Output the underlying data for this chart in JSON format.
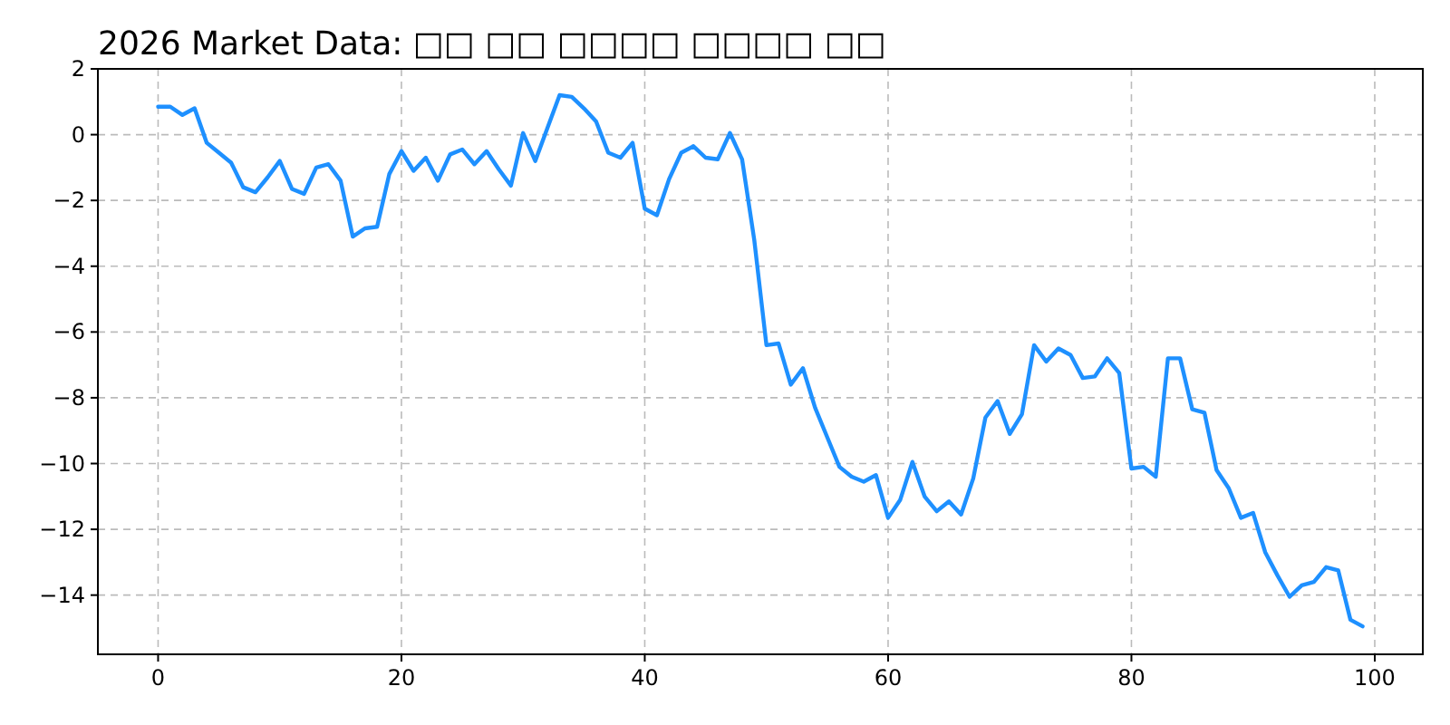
{
  "chart_data": {
    "type": "line",
    "title": "2026 Market Data: □□ □□ □□□□ □□□□ □□",
    "x": [
      0,
      1,
      2,
      3,
      4,
      5,
      6,
      7,
      8,
      9,
      10,
      11,
      12,
      13,
      14,
      15,
      16,
      17,
      18,
      19,
      20,
      21,
      22,
      23,
      24,
      25,
      26,
      27,
      28,
      29,
      30,
      31,
      32,
      33,
      34,
      35,
      36,
      37,
      38,
      39,
      40,
      41,
      42,
      43,
      44,
      45,
      46,
      47,
      48,
      49,
      50,
      51,
      52,
      53,
      54,
      55,
      56,
      57,
      58,
      59,
      60,
      61,
      62,
      63,
      64,
      65,
      66,
      67,
      68,
      69,
      70,
      71,
      72,
      73,
      74,
      75,
      76,
      77,
      78,
      79,
      80,
      81,
      82,
      83,
      84,
      85,
      86,
      87,
      88,
      89,
      90,
      91,
      92,
      93,
      94,
      95,
      96,
      97,
      98,
      99
    ],
    "series": [
      {
        "color": "#1e90ff",
        "values": [
          0.85,
          0.85,
          0.6,
          0.8,
          -0.25,
          -0.55,
          -0.85,
          -1.6,
          -1.75,
          -1.3,
          -0.8,
          -1.65,
          -1.8,
          -1.0,
          -0.9,
          -1.4,
          -3.1,
          -2.85,
          -2.8,
          -1.2,
          -0.5,
          -1.1,
          -0.7,
          -1.4,
          -0.6,
          -0.45,
          -0.9,
          -0.5,
          -1.05,
          -1.55,
          0.05,
          -0.8,
          0.2,
          1.2,
          1.15,
          0.8,
          0.4,
          -0.55,
          -0.7,
          -0.25,
          -2.25,
          -2.45,
          -1.35,
          -0.55,
          -0.35,
          -0.7,
          -0.75,
          0.05,
          -0.75,
          -3.2,
          -6.4,
          -6.35,
          -7.6,
          -7.1,
          -8.3,
          -9.2,
          -10.1,
          -10.4,
          -10.55,
          -10.35,
          -11.65,
          -11.1,
          -9.95,
          -11.0,
          -11.45,
          -11.15,
          -11.55,
          -10.45,
          -8.6,
          -8.1,
          -9.1,
          -8.5,
          -6.4,
          -6.9,
          -6.5,
          -6.7,
          -7.4,
          -7.35,
          -6.8,
          -7.25,
          -10.15,
          -10.1,
          -10.4,
          -6.8,
          -6.8,
          -8.35,
          -8.45,
          -10.2,
          -10.75,
          -11.65,
          -11.5,
          -12.7,
          -13.4,
          -14.05,
          -13.7,
          -13.6,
          -13.15,
          -13.25,
          -14.75,
          -14.95
        ]
      }
    ],
    "xlim": [
      -4.95,
      103.95
    ],
    "xticks": [
      0,
      20,
      40,
      60,
      80,
      100
    ],
    "ylim": [
      -15.8,
      2.0
    ],
    "yticks": [
      -14,
      -12,
      -10,
      -8,
      -6,
      -4,
      -2,
      0,
      2
    ],
    "grid": true,
    "line_style": "solid"
  }
}
